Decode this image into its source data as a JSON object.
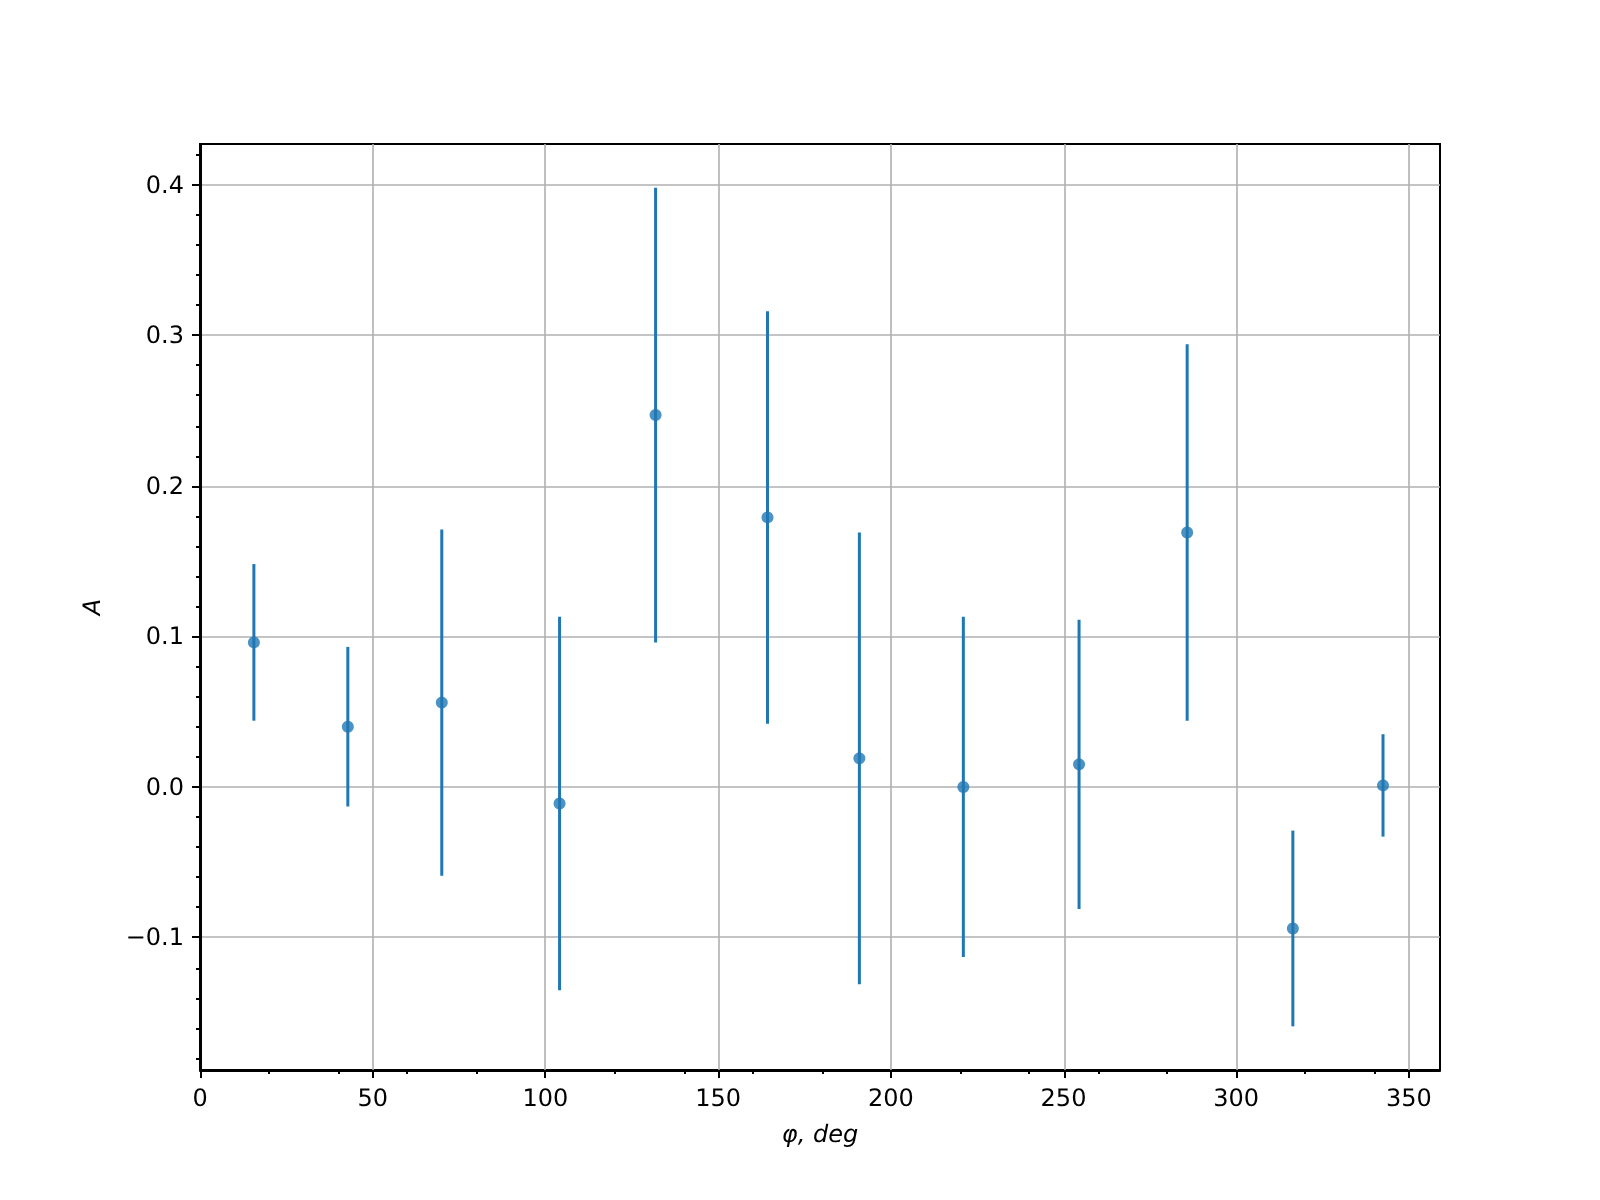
{
  "chart_data": {
    "type": "scatter",
    "xlabel": "φ, deg",
    "ylabel": "A",
    "x": [
      15.6,
      42.8,
      70,
      104.1,
      131.9,
      164.3,
      190.9,
      221,
      254.5,
      285.8,
      316.4,
      342.5
    ],
    "series": [
      {
        "color": "#1f77b4",
        "values": [
          0.096,
          0.04,
          0.056,
          -0.011,
          0.247,
          0.179,
          0.019,
          0.0,
          0.015,
          0.169,
          -0.094,
          0.001
        ],
        "errors": [
          0.052,
          0.053,
          0.115,
          0.124,
          0.151,
          0.137,
          0.15,
          0.113,
          0.096,
          0.125,
          0.065,
          0.034
        ]
      }
    ],
    "xlim": [
      0,
      359
    ],
    "xticks": [
      0,
      50,
      100,
      150,
      200,
      250,
      300,
      350
    ],
    "ylim": [
      -0.188,
      0.427
    ],
    "yticks": [
      {
        "value": -0.1,
        "label": "−0.1"
      },
      {
        "value": 0,
        "label": "0.0"
      },
      0.1,
      0.2,
      0.3,
      0.4
    ],
    "grid": true,
    "marker": "circle"
  }
}
